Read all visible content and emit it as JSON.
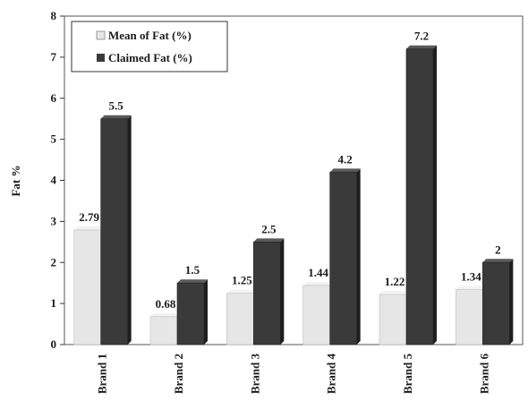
{
  "chart_data": {
    "type": "bar",
    "categories": [
      "Brand 1",
      "Brand 2",
      "Brand 3",
      "Brand 4",
      "Brand 5",
      "Brand 6"
    ],
    "series": [
      {
        "name": "Mean of Fat (%)",
        "values": [
          2.79,
          0.68,
          1.25,
          1.44,
          1.22,
          1.34
        ],
        "labels": [
          "2.79",
          "0.68",
          "1.25",
          "1.44",
          "1.22",
          "1.34"
        ],
        "color": "#e6e6e6"
      },
      {
        "name": "Claimed Fat (%)",
        "values": [
          5.5,
          1.5,
          2.5,
          4.2,
          7.2,
          2
        ],
        "labels": [
          "5.5",
          "1.5",
          "2.5",
          "4.2",
          "7.2",
          "2"
        ],
        "color": "#3a3a3a"
      }
    ],
    "ylabel": "Fat %",
    "xlabel": "",
    "ylim": [
      0,
      8
    ],
    "yticks": [
      "0",
      "1",
      "2",
      "3",
      "4",
      "5",
      "6",
      "7",
      "8"
    ],
    "legend": "top-left",
    "grid": false
  }
}
